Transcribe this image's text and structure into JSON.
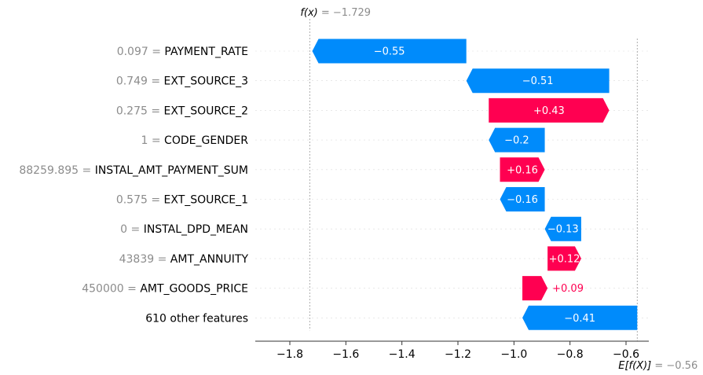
{
  "chart_data": {
    "type": "waterfall",
    "fx_label": "f(x)",
    "fx_value_text": " = −1.729",
    "fx_value": -1.729,
    "efx_label": "E[f(X)]",
    "efx_value_text": " = −0.56",
    "efx_value": -0.56,
    "ticks": [
      -1.8,
      -1.6,
      -1.4,
      -1.2,
      -1.0,
      -0.8,
      -0.6
    ],
    "tick_labels": [
      "−1.8",
      "−1.6",
      "−1.4",
      "−1.2",
      "−1.0",
      "−0.8",
      "−0.6"
    ],
    "xlim": [
      -1.92,
      -0.53
    ],
    "features": [
      {
        "value": "0.097",
        "name": "PAYMENT_RATE",
        "shap": -0.55,
        "label": "−0.55"
      },
      {
        "value": "0.749",
        "name": "EXT_SOURCE_3",
        "shap": -0.51,
        "label": "−0.51"
      },
      {
        "value": "0.275",
        "name": "EXT_SOURCE_2",
        "shap": 0.43,
        "label": "+0.43"
      },
      {
        "value": "1",
        "name": "CODE_GENDER",
        "shap": -0.2,
        "label": "−0.2"
      },
      {
        "value": "88259.895",
        "name": "INSTAL_AMT_PAYMENT_SUM",
        "shap": 0.16,
        "label": "+0.16"
      },
      {
        "value": "0.575",
        "name": "EXT_SOURCE_1",
        "shap": -0.16,
        "label": "−0.16"
      },
      {
        "value": "0",
        "name": "INSTAL_DPD_MEAN",
        "shap": -0.13,
        "label": "−0.13"
      },
      {
        "value": "43839",
        "name": "AMT_ANNUITY",
        "shap": 0.12,
        "label": "+0.12"
      },
      {
        "value": "450000",
        "name": "AMT_GOODS_PRICE",
        "shap": 0.09,
        "label": "+0.09"
      },
      {
        "value": "",
        "name": "610 other features",
        "shap": -0.41,
        "label": "−0.41"
      }
    ],
    "colors": {
      "negative": "#008bfb",
      "positive": "#ff0051",
      "axis": "#333333",
      "grid": "#cccccc",
      "muted": "#8c8c8c"
    }
  }
}
